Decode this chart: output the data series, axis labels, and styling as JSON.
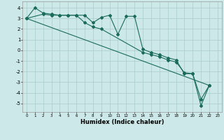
{
  "xlabel": "Humidex (Indice chaleur)",
  "xlim": [
    -0.5,
    23.5
  ],
  "ylim": [
    -5.8,
    4.6
  ],
  "yticks": [
    -5,
    -4,
    -3,
    -2,
    -1,
    0,
    1,
    2,
    3,
    4
  ],
  "xticks": [
    0,
    1,
    2,
    3,
    4,
    5,
    6,
    7,
    8,
    9,
    10,
    11,
    12,
    13,
    14,
    15,
    16,
    17,
    18,
    19,
    20,
    21,
    22,
    23
  ],
  "bg_color": "#cce8e8",
  "grid_color": "#aacccc",
  "line_color": "#1a6b5a",
  "series1_x": [
    0,
    1,
    2,
    3,
    4,
    5,
    6,
    7,
    8,
    9,
    10,
    11,
    12,
    13,
    14,
    15,
    16,
    17,
    18,
    19,
    20,
    21,
    22
  ],
  "series1_y": [
    3.0,
    4.0,
    3.5,
    3.4,
    3.3,
    3.3,
    3.3,
    3.3,
    2.6,
    3.1,
    3.3,
    1.5,
    3.2,
    3.2,
    0.1,
    -0.2,
    -0.4,
    -0.7,
    -0.9,
    -2.2,
    -2.2,
    -5.2,
    -3.3
  ],
  "series2_x": [
    0,
    2,
    3,
    4,
    5,
    6,
    7,
    8,
    9,
    14,
    15,
    16,
    17,
    18,
    19,
    20,
    21,
    22
  ],
  "series2_y": [
    3.0,
    3.4,
    3.3,
    3.3,
    3.3,
    3.3,
    2.6,
    2.2,
    2.0,
    -0.2,
    -0.4,
    -0.6,
    -0.9,
    -1.1,
    -2.1,
    -2.2,
    -4.6,
    -3.3
  ],
  "series3_x": [
    0,
    22
  ],
  "series3_y": [
    3.0,
    -3.3
  ]
}
